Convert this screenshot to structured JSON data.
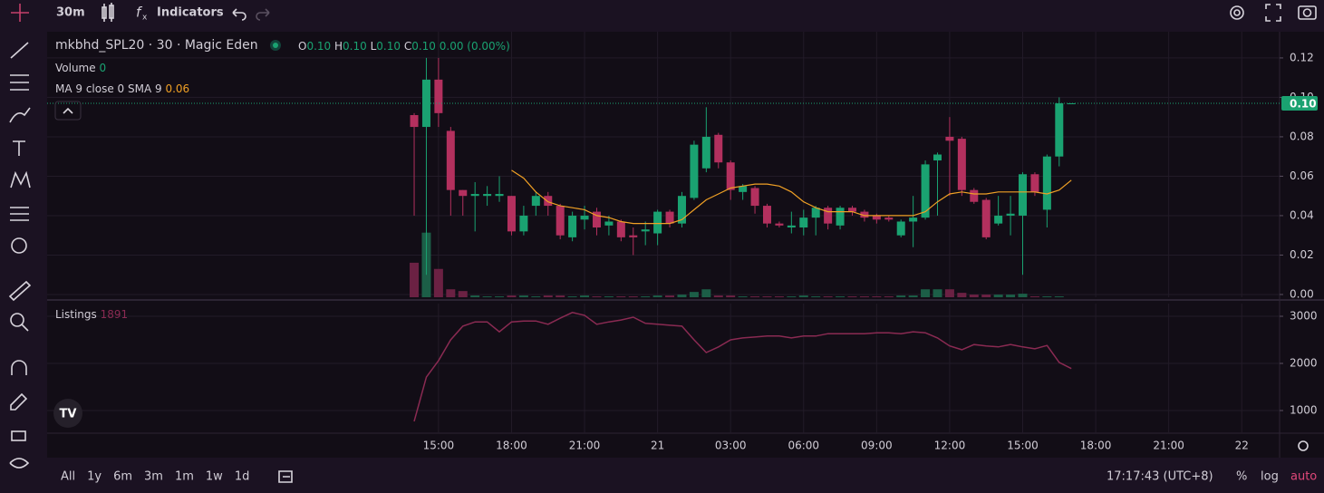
{
  "toolbar": {
    "interval": "30m",
    "indicators": "Indicators"
  },
  "legend": {
    "symbol": "mkbhd_SPL20 · 30 · Magic Eden",
    "ohlc": [
      {
        "key": "O",
        "value": "0.10"
      },
      {
        "key": "H",
        "value": "0.10"
      },
      {
        "key": "L",
        "value": "0.10"
      },
      {
        "key": "C",
        "value": "0.10"
      }
    ],
    "change": "0.00 (0.00%)",
    "volume_name": "Volume",
    "ma_name": "MA 9 close 0 SMA 9",
    "ma_value": "0.06"
  },
  "last_price_label": "0.10",
  "chart_data": [
    {
      "type": "candlestick",
      "open": [
        0.091,
        0.085,
        0.109,
        0.083,
        0.053,
        0.05,
        0.05,
        0.05,
        0.05,
        0.032,
        0.045,
        0.05,
        0.045,
        0.029,
        0.038,
        0.042,
        0.035,
        0.037,
        0.03,
        0.032,
        0.031,
        0.042,
        0.036,
        0.049,
        0.064,
        0.081,
        0.067,
        0.052,
        0.054,
        0.045,
        0.036,
        0.034,
        0.034,
        0.039,
        0.044,
        0.035,
        0.044,
        0.042,
        0.04,
        0.039,
        0.03,
        0.037,
        0.039,
        0.068,
        0.08,
        0.079,
        0.053,
        0.048,
        0.036,
        0.04,
        0.04,
        0.061,
        0.043,
        0.07,
        0.097
      ],
      "high": [
        0.092,
        0.12,
        0.12,
        0.085,
        0.053,
        0.057,
        0.055,
        0.06,
        0.05,
        0.045,
        0.052,
        0.052,
        0.046,
        0.042,
        0.045,
        0.044,
        0.04,
        0.038,
        0.034,
        0.037,
        0.043,
        0.043,
        0.052,
        0.078,
        0.095,
        0.082,
        0.068,
        0.056,
        0.055,
        0.046,
        0.037,
        0.042,
        0.043,
        0.045,
        0.045,
        0.045,
        0.045,
        0.043,
        0.041,
        0.04,
        0.038,
        0.05,
        0.068,
        0.072,
        0.09,
        0.08,
        0.054,
        0.049,
        0.05,
        0.05,
        0.062,
        0.062,
        0.071,
        0.1,
        0.097
      ],
      "low": [
        0.04,
        0.01,
        0.085,
        0.04,
        0.04,
        0.032,
        0.045,
        0.047,
        0.03,
        0.03,
        0.04,
        0.04,
        0.028,
        0.027,
        0.033,
        0.03,
        0.03,
        0.027,
        0.02,
        0.025,
        0.025,
        0.034,
        0.034,
        0.048,
        0.062,
        0.064,
        0.048,
        0.048,
        0.041,
        0.034,
        0.034,
        0.031,
        0.03,
        0.03,
        0.033,
        0.033,
        0.04,
        0.037,
        0.036,
        0.037,
        0.029,
        0.024,
        0.038,
        0.04,
        0.05,
        0.05,
        0.046,
        0.028,
        0.035,
        0.03,
        0.01,
        0.05,
        0.034,
        0.065,
        0.097
      ],
      "close": [
        0.085,
        0.109,
        0.092,
        0.053,
        0.05,
        0.051,
        0.051,
        0.051,
        0.032,
        0.04,
        0.05,
        0.045,
        0.03,
        0.04,
        0.04,
        0.034,
        0.037,
        0.029,
        0.029,
        0.033,
        0.042,
        0.036,
        0.05,
        0.076,
        0.08,
        0.067,
        0.053,
        0.055,
        0.045,
        0.036,
        0.035,
        0.035,
        0.039,
        0.044,
        0.036,
        0.044,
        0.042,
        0.039,
        0.038,
        0.038,
        0.037,
        0.039,
        0.066,
        0.071,
        0.078,
        0.053,
        0.047,
        0.029,
        0.04,
        0.041,
        0.061,
        0.052,
        0.07,
        0.097,
        0.097
      ],
      "volume": [
        39,
        73,
        32,
        9,
        7,
        2,
        1,
        1,
        2,
        2,
        1,
        2,
        2,
        1,
        2,
        1,
        1,
        1,
        1,
        1,
        2,
        2,
        3,
        6,
        9,
        2,
        2,
        1,
        1,
        1,
        1,
        1,
        2,
        1,
        1,
        1,
        1,
        1,
        1,
        1,
        2,
        2,
        9,
        9,
        9,
        5,
        3,
        3,
        3,
        3,
        4,
        1,
        1,
        1,
        0
      ],
      "volume_ylim": [
        0,
        300
      ],
      "ma": [
        null,
        null,
        null,
        null,
        null,
        null,
        null,
        null,
        0.063,
        0.059,
        0.052,
        0.047,
        0.045,
        0.044,
        0.043,
        0.04,
        0.039,
        0.037,
        0.036,
        0.036,
        0.036,
        0.036,
        0.038,
        0.043,
        0.048,
        0.051,
        0.054,
        0.055,
        0.056,
        0.056,
        0.055,
        0.052,
        0.047,
        0.044,
        0.042,
        0.042,
        0.042,
        0.04,
        0.04,
        0.04,
        0.04,
        0.04,
        0.042,
        0.047,
        0.051,
        0.052,
        0.051,
        0.051,
        0.052,
        0.052,
        0.052,
        0.052,
        0.051,
        0.053,
        0.058
      ],
      "up_color": "#1aa271",
      "down_color": "#b3305e",
      "volume_up_color": "#1c5e47",
      "volume_down_color": "#6b2143",
      "ma_color": "#f0a025",
      "xlim": [
        -30.16,
        71.11
      ],
      "xticks": [
        {
          "value": 2,
          "label": "15:00"
        },
        {
          "value": 8,
          "label": "18:00"
        },
        {
          "value": 14,
          "label": "21:00"
        },
        {
          "value": 20,
          "label": "21"
        },
        {
          "value": 26,
          "label": "03:00"
        },
        {
          "value": 32,
          "label": "06:00"
        },
        {
          "value": 38,
          "label": "09:00"
        },
        {
          "value": 44,
          "label": "12:00"
        },
        {
          "value": 50,
          "label": "15:00"
        },
        {
          "value": 56,
          "label": "18:00"
        },
        {
          "value": 62,
          "label": "21:00"
        },
        {
          "value": 68,
          "label": "22"
        }
      ],
      "ylim": [
        -0.0014,
        0.1333
      ],
      "yticks": [
        0.12,
        {
          "value": 0.1,
          "label": "0.10"
        },
        0.08,
        0.06,
        0.04,
        0.02,
        {
          "value": 0,
          "label": "0.00"
        }
      ],
      "grid": true
    },
    {
      "type": "line",
      "series": [
        {
          "name": "Listings",
          "color": "#8a2a52",
          "values": [
            770,
            1710,
            2060,
            2500,
            2790,
            2880,
            2880,
            2670,
            2880,
            2900,
            2900,
            2830,
            2960,
            3080,
            3020,
            2830,
            2880,
            2920,
            2980,
            2850,
            2830,
            2810,
            2790,
            2500,
            2230,
            2350,
            2500,
            2540,
            2560,
            2580,
            2580,
            2540,
            2580,
            2580,
            2630,
            2630,
            2630,
            2630,
            2650,
            2650,
            2630,
            2670,
            2650,
            2540,
            2370,
            2290,
            2400,
            2370,
            2350,
            2400,
            2350,
            2310,
            2380,
            2020,
            1891
          ]
        }
      ],
      "xlim": [
        -30.16,
        71.11
      ],
      "ylim": [
        519,
        3269
      ],
      "yticks": [
        1000,
        2000,
        3000
      ],
      "grid": true
    }
  ],
  "bottom_bar": {
    "ranges": [
      "All",
      "1y",
      "6m",
      "3m",
      "1m",
      "1w",
      "1d"
    ],
    "clock": "17:17:43 (UTC+8)",
    "percent": "%",
    "log": "log",
    "auto": "auto"
  }
}
